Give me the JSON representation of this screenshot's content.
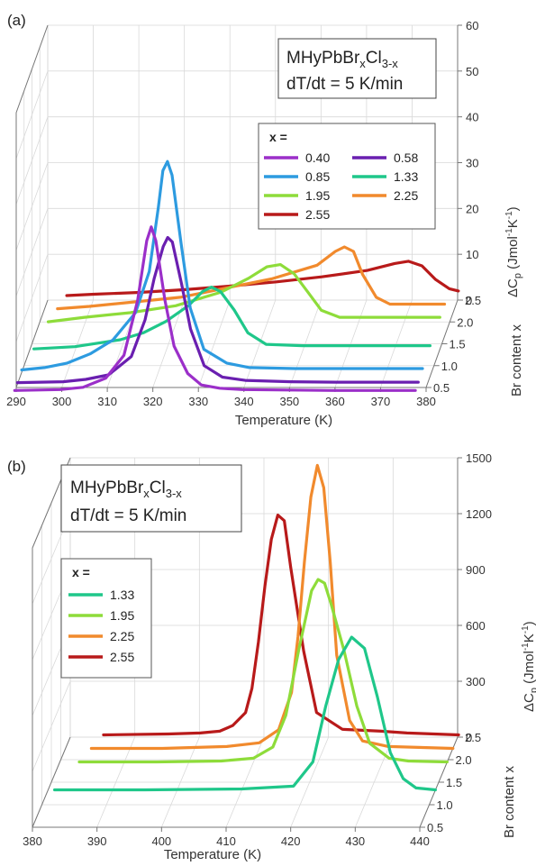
{
  "chart_data": [
    {
      "panel_label": "(a)",
      "type": "line",
      "title_line1_main": "MHyPbBr",
      "title_line1_sub1": "x",
      "title_line1_mid": "Cl",
      "title_line1_sub2": "3-x",
      "title_line2": "dT/dt = 5 K/min",
      "xlabel": "Temperature (K)",
      "ylabel_prefix": "ΔC",
      "ylabel_sub": "p",
      "ylabel_suffix": "(Jmol",
      "ylabel_exp1": "-1",
      "ylabel_mid": "K",
      "ylabel_exp2": "-1",
      "ylabel_close": ")",
      "zlabel": "Br content x",
      "xlim": [
        290,
        380
      ],
      "xticks": [
        "290",
        "300",
        "310",
        "320",
        "330",
        "340",
        "350",
        "360",
        "370",
        "380"
      ],
      "ylim": [
        0,
        60
      ],
      "yticks": [
        "0",
        "10",
        "20",
        "30",
        "40",
        "50",
        "60"
      ],
      "zticks": [
        "0.5",
        "1.0",
        "1.5",
        "2.0",
        "2.5"
      ],
      "legend_title": "x =",
      "grid": true,
      "series": [
        {
          "name": "0.40",
          "color": "#9b2fc9",
          "z": 0.4,
          "x": [
            290,
            300,
            305,
            310,
            314,
            317,
            319,
            320,
            321,
            323,
            325,
            328,
            331,
            335,
            340,
            350,
            360,
            370,
            378
          ],
          "y": [
            0.3,
            0.5,
            1,
            3,
            8,
            20,
            33,
            36,
            33,
            20,
            10,
            4,
            1.5,
            0.8,
            0.5,
            0.4,
            0.3,
            0.3,
            0.3
          ]
        },
        {
          "name": "0.58",
          "color": "#6a1fb0",
          "z": 0.58,
          "x": [
            290,
            300,
            305,
            310,
            315,
            318,
            320,
            322,
            323,
            324,
            326,
            328,
            331,
            335,
            340,
            350,
            360,
            370,
            378
          ],
          "y": [
            0.3,
            0.5,
            1,
            2,
            6,
            14,
            23,
            30,
            32,
            31,
            22,
            12,
            4,
            1.5,
            0.8,
            0.5,
            0.4,
            0.4,
            0.4
          ]
        },
        {
          "name": "0.85",
          "color": "#2d9be0",
          "z": 0.85,
          "x": [
            290,
            295,
            300,
            305,
            310,
            315,
            318,
            320,
            321,
            322,
            323,
            325,
            327,
            330,
            335,
            340,
            350,
            360,
            370,
            378
          ],
          "y": [
            0.5,
            1,
            2,
            4,
            7,
            13,
            22,
            36,
            44,
            46,
            43,
            28,
            14,
            5,
            2,
            1,
            0.8,
            0.8,
            0.8,
            0.8
          ]
        },
        {
          "name": "1.33",
          "color": "#1fc78a",
          "z": 1.33,
          "x": [
            291,
            300,
            310,
            315,
            320,
            325,
            328,
            330,
            332,
            335,
            338,
            342,
            350,
            360,
            370,
            378
          ],
          "y": [
            0.5,
            1,
            2.5,
            4,
            6.5,
            10,
            13,
            14,
            13,
            9,
            4,
            1.5,
            1.2,
            1.2,
            1.2,
            1.2
          ]
        },
        {
          "name": "1.95",
          "color": "#8edc3a",
          "z": 1.95,
          "x": [
            292,
            300,
            310,
            320,
            330,
            336,
            340,
            343,
            346,
            349,
            352,
            356,
            360,
            370,
            378
          ],
          "y": [
            0.5,
            1.5,
            2.5,
            4,
            7,
            10,
            12.5,
            13,
            11,
            7,
            3,
            1.5,
            1.5,
            1.5,
            1.5
          ]
        },
        {
          "name": "2.25",
          "color": "#f18a2d",
          "z": 2.25,
          "x": [
            293,
            300,
            310,
            320,
            330,
            340,
            350,
            354,
            356,
            358,
            360,
            363,
            366,
            370,
            378
          ],
          "y": [
            0.5,
            1,
            2,
            3,
            5,
            7,
            10,
            13,
            14,
            13,
            8,
            3,
            1.5,
            1.5,
            1.5
          ]
        },
        {
          "name": "2.55",
          "color": "#b81a1a",
          "z": 2.55,
          "x": [
            294,
            300,
            310,
            320,
            330,
            340,
            350,
            360,
            366,
            369,
            372,
            375,
            378,
            380
          ],
          "y": [
            0.5,
            0.8,
            1.2,
            1.8,
            2.6,
            3.5,
            4.6,
            6,
            7.5,
            8,
            7,
            4,
            2,
            1.5
          ]
        }
      ]
    },
    {
      "panel_label": "(b)",
      "type": "line",
      "title_line1_main": "MHyPbBr",
      "title_line1_sub1": "x",
      "title_line1_mid": "Cl",
      "title_line1_sub2": "3-x",
      "title_line2": "dT/dt = 5 K/min",
      "xlabel": "Temperature (K)",
      "ylabel_prefix": "ΔC",
      "ylabel_sub": "p",
      "ylabel_suffix": "(Jmol",
      "ylabel_exp1": "-1",
      "ylabel_mid": "K",
      "ylabel_exp2": "-1",
      "ylabel_close": ")",
      "zlabel": "Br content x",
      "xlim": [
        380,
        440
      ],
      "xticks": [
        "380",
        "390",
        "400",
        "410",
        "420",
        "430",
        "440"
      ],
      "ylim": [
        0,
        1500
      ],
      "yticks": [
        "0",
        "300",
        "600",
        "900",
        "1200",
        "1500"
      ],
      "zticks": [
        "0.5",
        "1.0",
        "1.5",
        "2.0",
        "2.5"
      ],
      "legend_title": "x =",
      "grid": true,
      "series": [
        {
          "name": "1.33",
          "color": "#1fc78a",
          "z": 1.33,
          "x": [
            381,
            395,
            410,
            418,
            421,
            423,
            425,
            427,
            429,
            431,
            433,
            435,
            437,
            440
          ],
          "y": [
            0,
            0,
            5,
            20,
            150,
            450,
            700,
            820,
            760,
            500,
            200,
            60,
            10,
            0
          ]
        },
        {
          "name": "1.95",
          "color": "#8edc3a",
          "z": 1.95,
          "x": [
            383,
            395,
            405,
            410,
            413,
            415,
            417,
            419,
            420,
            421,
            422,
            424,
            426,
            428,
            431,
            434,
            440
          ],
          "y": [
            0,
            0,
            5,
            20,
            80,
            250,
            600,
            920,
            980,
            960,
            850,
            600,
            300,
            100,
            20,
            5,
            0
          ]
        },
        {
          "name": "2.25",
          "color": "#f18a2d",
          "z": 2.25,
          "x": [
            384,
            395,
            405,
            410,
            413,
            415,
            416,
            417,
            418,
            419,
            420,
            421,
            422,
            424,
            426,
            430,
            440
          ],
          "y": [
            0,
            0,
            10,
            30,
            100,
            300,
            600,
            1000,
            1350,
            1520,
            1400,
            1000,
            500,
            150,
            40,
            10,
            0
          ]
        },
        {
          "name": "2.55",
          "color": "#b81a1a",
          "z": 2.55,
          "x": [
            385,
            395,
            400,
            403,
            405,
            407,
            408,
            409,
            410,
            411,
            412,
            413,
            414,
            416,
            418,
            422,
            428,
            432,
            440
          ],
          "y": [
            0,
            5,
            10,
            20,
            50,
            120,
            250,
            500,
            800,
            1050,
            1180,
            1150,
            900,
            450,
            120,
            30,
            20,
            10,
            0
          ]
        }
      ]
    }
  ]
}
